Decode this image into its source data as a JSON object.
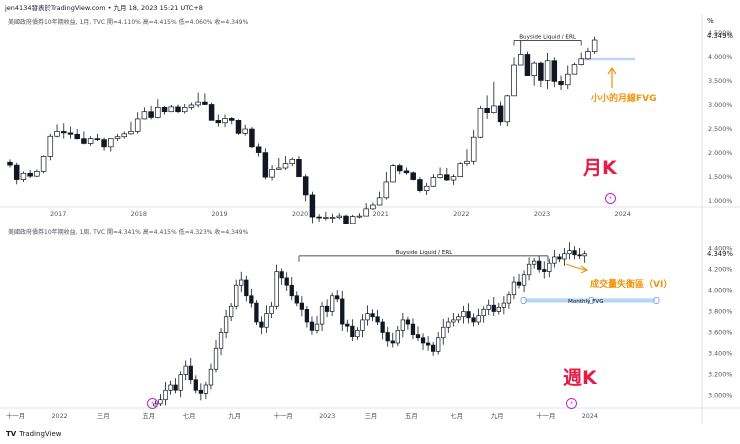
{
  "header": {
    "text": "jen4134發表於TradingView.com • 九月 18, 2023 15:21 UTC+8"
  },
  "percent_symbol": "%",
  "monthly": {
    "info": "美國政府債券10年期收益, 1月, TVC  開=4.110%  高=4.415%  低=4.060%  收=4.349%",
    "label": "月K",
    "note": "小小的月線FVG",
    "annotation": "Buyside Liquid / ERL",
    "price_badge": "4.349%",
    "colors": {
      "up": "#131722",
      "down": "#131722",
      "fvg": "#b7d6f5",
      "arrow": "#f0930a",
      "accent": "#e11d48"
    }
  },
  "weekly": {
    "info": "美國政府債券10年期收益, 1周, TVC  開=4.341%  高=4.415%  低=4.323%  收=4.349%",
    "label": "週K",
    "note": "成交量失衡區（VI）",
    "annotation": "Buyside Liquid / ERL",
    "fvg_label": "Monthly FVG",
    "price_badge": "4.349%"
  },
  "logo": {
    "text": "TradingView",
    "mark": "TV"
  },
  "chart_data": [
    {
      "type": "candlestick",
      "title": "",
      "timeframe": "1月",
      "y_unit": "%",
      "ylim": [
        0.9,
        4.6
      ],
      "y_ticks": [
        "4.500%",
        "4.000%",
        "3.500%",
        "3.000%",
        "2.500%",
        "2.000%",
        "1.500%",
        "1.000%"
      ],
      "y_tick_values": [
        4.5,
        4.0,
        3.5,
        3.0,
        2.5,
        2.0,
        1.5,
        1.0
      ],
      "x_ticks": [
        "2017",
        "2018",
        "2019",
        "2020",
        "2021",
        "2022",
        "2023",
        "2024"
      ],
      "x_tick_index": [
        7,
        19,
        31,
        43,
        55,
        67,
        79,
        91
      ],
      "candles": [
        [
          1.81,
          1.87,
          1.7,
          1.75
        ],
        [
          1.75,
          1.8,
          1.35,
          1.45
        ],
        [
          1.45,
          1.62,
          1.4,
          1.58
        ],
        [
          1.58,
          1.65,
          1.48,
          1.52
        ],
        [
          1.52,
          1.66,
          1.5,
          1.62
        ],
        [
          1.62,
          1.95,
          1.58,
          1.93
        ],
        [
          1.93,
          2.4,
          1.85,
          2.35
        ],
        [
          2.35,
          2.6,
          2.33,
          2.45
        ],
        [
          2.45,
          2.62,
          2.3,
          2.42
        ],
        [
          2.42,
          2.55,
          2.3,
          2.39
        ],
        [
          2.39,
          2.5,
          2.28,
          2.3
        ],
        [
          2.3,
          2.45,
          2.18,
          2.2
        ],
        [
          2.2,
          2.35,
          2.15,
          2.3
        ],
        [
          2.3,
          2.4,
          2.25,
          2.28
        ],
        [
          2.28,
          2.32,
          2.05,
          2.13
        ],
        [
          2.13,
          2.3,
          2.03,
          2.3
        ],
        [
          2.3,
          2.4,
          2.25,
          2.34
        ],
        [
          2.34,
          2.45,
          2.3,
          2.4
        ],
        [
          2.4,
          2.65,
          2.38,
          2.45
        ],
        [
          2.45,
          2.85,
          2.4,
          2.71
        ],
        [
          2.71,
          2.95,
          2.7,
          2.86
        ],
        [
          2.86,
          2.98,
          2.7,
          2.74
        ],
        [
          2.74,
          3.12,
          2.72,
          2.95
        ],
        [
          2.95,
          2.98,
          2.8,
          2.86
        ],
        [
          2.86,
          3.0,
          2.85,
          2.96
        ],
        [
          2.96,
          3.01,
          2.83,
          2.86
        ],
        [
          2.86,
          3.02,
          2.82,
          2.95
        ],
        [
          2.95,
          3.05,
          2.9,
          3.0
        ],
        [
          3.0,
          3.26,
          2.95,
          3.06
        ],
        [
          3.06,
          3.24,
          3.0,
          3.01
        ],
        [
          3.01,
          3.05,
          2.68,
          2.68
        ],
        [
          2.68,
          2.8,
          2.55,
          2.63
        ],
        [
          2.63,
          2.8,
          2.54,
          2.72
        ],
        [
          2.72,
          2.75,
          2.6,
          2.68
        ],
        [
          2.68,
          2.7,
          2.38,
          2.41
        ],
        [
          2.41,
          2.59,
          2.36,
          2.5
        ],
        [
          2.5,
          2.54,
          2.1,
          2.13
        ],
        [
          2.13,
          2.2,
          1.93,
          2.01
        ],
        [
          2.01,
          2.1,
          1.45,
          1.5
        ],
        [
          1.5,
          1.75,
          1.43,
          1.66
        ],
        [
          1.66,
          1.9,
          1.65,
          1.69
        ],
        [
          1.69,
          1.94,
          1.65,
          1.78
        ],
        [
          1.78,
          1.91,
          1.73,
          1.87
        ],
        [
          1.87,
          1.94,
          1.5,
          1.51
        ],
        [
          1.51,
          1.56,
          1.0,
          1.13
        ],
        [
          1.13,
          1.2,
          0.54,
          0.67
        ],
        [
          0.67,
          0.73,
          0.57,
          0.65
        ],
        [
          0.65,
          0.78,
          0.6,
          0.66
        ],
        [
          0.66,
          0.74,
          0.55,
          0.66
        ],
        [
          0.66,
          0.75,
          0.62,
          0.69
        ],
        [
          0.69,
          0.72,
          0.5,
          0.53
        ],
        [
          0.53,
          0.72,
          0.51,
          0.68
        ],
        [
          0.68,
          0.75,
          0.64,
          0.69
        ],
        [
          0.69,
          0.96,
          0.68,
          0.84
        ],
        [
          0.84,
          0.97,
          0.82,
          0.92
        ],
        [
          0.92,
          1.2,
          0.91,
          1.07
        ],
        [
          1.07,
          1.61,
          1.03,
          1.4
        ],
        [
          1.4,
          1.77,
          1.39,
          1.74
        ],
        [
          1.74,
          1.78,
          1.56,
          1.63
        ],
        [
          1.63,
          1.7,
          1.55,
          1.59
        ],
        [
          1.59,
          1.62,
          1.43,
          1.45
        ],
        [
          1.45,
          1.5,
          1.18,
          1.22
        ],
        [
          1.22,
          1.38,
          1.13,
          1.31
        ],
        [
          1.31,
          1.56,
          1.3,
          1.49
        ],
        [
          1.49,
          1.7,
          1.47,
          1.55
        ],
        [
          1.55,
          1.69,
          1.42,
          1.44
        ],
        [
          1.44,
          1.56,
          1.34,
          1.51
        ],
        [
          1.51,
          1.81,
          1.51,
          1.78
        ],
        [
          1.78,
          2.08,
          1.73,
          1.83
        ],
        [
          1.83,
          2.48,
          1.76,
          2.33
        ],
        [
          2.33,
          2.98,
          2.31,
          2.93
        ],
        [
          2.93,
          3.2,
          2.71,
          2.84
        ],
        [
          2.84,
          3.48,
          2.82,
          2.98
        ],
        [
          2.98,
          3.07,
          2.57,
          2.65
        ],
        [
          2.65,
          3.21,
          2.56,
          3.19
        ],
        [
          3.19,
          3.99,
          3.19,
          3.83
        ],
        [
          3.83,
          4.34,
          3.85,
          4.05
        ],
        [
          4.05,
          4.11,
          3.61,
          3.61
        ],
        [
          3.61,
          3.91,
          3.4,
          3.87
        ],
        [
          3.87,
          3.9,
          3.37,
          3.51
        ],
        [
          3.51,
          4.08,
          3.33,
          3.92
        ],
        [
          3.92,
          3.99,
          3.37,
          3.49
        ],
        [
          3.49,
          3.61,
          3.31,
          3.42
        ],
        [
          3.42,
          3.82,
          3.33,
          3.64
        ],
        [
          3.64,
          3.88,
          3.64,
          3.84
        ],
        [
          3.84,
          4.09,
          3.82,
          3.96
        ],
        [
          3.96,
          4.19,
          3.94,
          4.11
        ],
        [
          4.11,
          4.42,
          4.06,
          4.35
        ]
      ],
      "annotations": [
        "Buyside Liquid / ERL",
        "小小的月線FVG",
        "月K"
      ]
    },
    {
      "type": "candlestick",
      "title": "",
      "timeframe": "1周",
      "y_unit": "%",
      "ylim": [
        2.9,
        4.5
      ],
      "y_ticks": [
        "4.400%",
        "4.200%",
        "4.000%",
        "3.800%",
        "3.600%",
        "3.400%",
        "3.200%",
        "3.000%"
      ],
      "y_tick_values": [
        4.4,
        4.2,
        4.0,
        3.8,
        3.6,
        3.4,
        3.2,
        3.0
      ],
      "x_ticks": [
        "十一月",
        "2022",
        "三月",
        "五月",
        "七月",
        "九月",
        "十一月",
        "2023",
        "三月",
        "五月",
        "七月",
        "九月",
        "十一月",
        "2024"
      ],
      "x_tick_index": [
        0,
        9,
        18,
        27,
        35,
        44,
        53,
        62,
        71,
        79,
        88,
        96,
        105,
        114
      ],
      "candles_approx_count": 86,
      "annotations": [
        "Buyside Liquid / ERL",
        "成交量失衡區（VI）",
        "Monthly FVG",
        "週K"
      ]
    }
  ]
}
